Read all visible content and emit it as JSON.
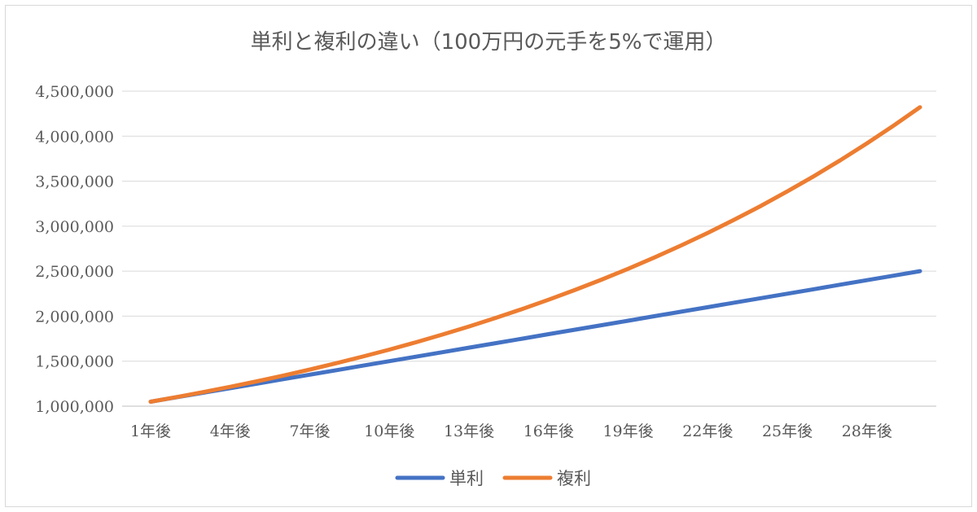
{
  "chart_data": {
    "type": "line",
    "title": "単利と複利の違い（100万円の元手を5%で運用）",
    "xlabel": "",
    "ylabel": "",
    "ylim": [
      1000000,
      4500000
    ],
    "yticks": [
      1000000,
      1500000,
      2000000,
      2500000,
      3000000,
      3500000,
      4000000,
      4500000
    ],
    "ytick_labels": [
      "1,000,000",
      "1,500,000",
      "2,000,000",
      "2,500,000",
      "3,000,000",
      "3,500,000",
      "4,000,000",
      "4,500,000"
    ],
    "categories": [
      "1年後",
      "2年後",
      "3年後",
      "4年後",
      "5年後",
      "6年後",
      "7年後",
      "8年後",
      "9年後",
      "10年後",
      "11年後",
      "12年後",
      "13年後",
      "14年後",
      "15年後",
      "16年後",
      "17年後",
      "18年後",
      "19年後",
      "20年後",
      "21年後",
      "22年後",
      "23年後",
      "24年後",
      "25年後",
      "26年後",
      "27年後",
      "28年後",
      "29年後",
      "30年後"
    ],
    "xtick_labels": [
      "1年後",
      "4年後",
      "7年後",
      "10年後",
      "13年後",
      "16年後",
      "19年後",
      "22年後",
      "25年後",
      "28年後"
    ],
    "xtick_indices": [
      0,
      3,
      6,
      9,
      12,
      15,
      18,
      21,
      24,
      27
    ],
    "grid": true,
    "legend_position": "bottom",
    "series": [
      {
        "name": "単利",
        "color": "#4472c4",
        "values": [
          1050000,
          1100000,
          1150000,
          1200000,
          1250000,
          1300000,
          1350000,
          1400000,
          1450000,
          1500000,
          1550000,
          1600000,
          1650000,
          1700000,
          1750000,
          1800000,
          1850000,
          1900000,
          1950000,
          2000000,
          2050000,
          2100000,
          2150000,
          2200000,
          2250000,
          2300000,
          2350000,
          2400000,
          2450000,
          2500000
        ]
      },
      {
        "name": "複利",
        "color": "#ed7d31",
        "values": [
          1050000,
          1102500,
          1157625,
          1215506,
          1276282,
          1340096,
          1407100,
          1477455,
          1551328,
          1628895,
          1710339,
          1795856,
          1885649,
          1979932,
          2078928,
          2182875,
          2292018,
          2406619,
          2526950,
          2653298,
          2785963,
          2925261,
          3071524,
          3225100,
          3386355,
          3555673,
          3733456,
          3920129,
          4116136,
          4321942
        ]
      }
    ]
  }
}
